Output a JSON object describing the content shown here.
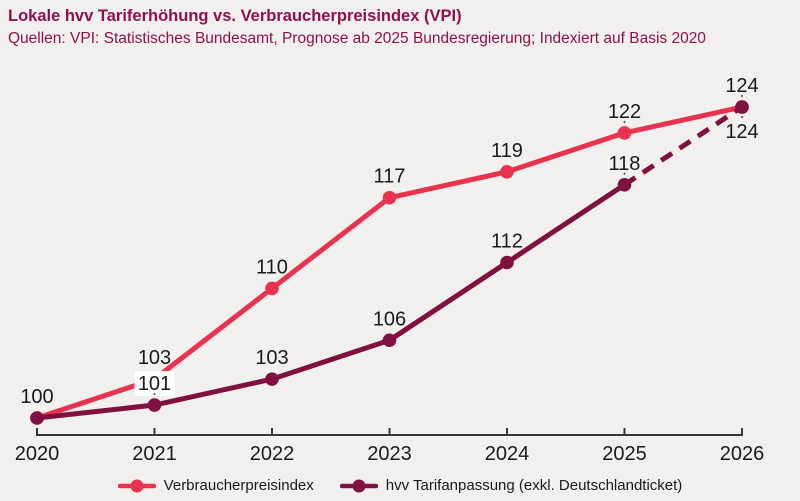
{
  "header": {
    "title": "Lokale hvv Tariferhöhung vs. Verbraucherpreisindex (VPI)",
    "subtitle": "Quellen: VPI: Statistisches Bundesamt, Prognose ab 2025 Bundesregierung; Indexiert auf Basis 2020"
  },
  "colors": {
    "background": "#f1f0ee",
    "title": "#90104e",
    "axis": "#383838",
    "label_text": "#1a1a1a",
    "leader": "#4a4a4a",
    "label_bg": "#ffffff"
  },
  "chart_data": {
    "type": "line",
    "title": "Lokale hvv Tariferhöhung vs. Verbraucherpreisindex (VPI)",
    "categories": [
      "2020",
      "2021",
      "2022",
      "2023",
      "2024",
      "2025",
      "2026"
    ],
    "series": [
      {
        "name": "Verbraucherpreisindex",
        "color": "#e8324e",
        "values": [
          100,
          103,
          110,
          117,
          119,
          122,
          124
        ],
        "line_style": "solid",
        "labels": {
          "placement": "above",
          "leader_at": [
            5,
            6
          ]
        }
      },
      {
        "name": "hvv Tarifanpassung (exkl. Deutschlandticket)",
        "color": "#801040",
        "values": [
          100,
          101,
          103,
          106,
          112,
          118,
          124
        ],
        "line_style": "solid_then_dashed",
        "dashed_from_index": 5,
        "labels": {
          "placement": "above",
          "hide_at": [
            0
          ],
          "bg_at": [
            1
          ],
          "below_at": [
            6
          ],
          "leader_at": [
            1,
            5,
            6
          ]
        }
      }
    ],
    "xlabel": "",
    "ylabel": "",
    "ylim": [
      98,
      126
    ],
    "grid": false,
    "legend_position": "bottom",
    "x_axis": {
      "ticks_direction": "up",
      "baseline_value": 100
    }
  },
  "legend": {
    "items": [
      {
        "label": "Verbraucherpreisindex",
        "color": "#e8324e"
      },
      {
        "label": "hvv Tarifanpassung (exkl. Deutschlandticket)",
        "color": "#801040"
      }
    ]
  }
}
